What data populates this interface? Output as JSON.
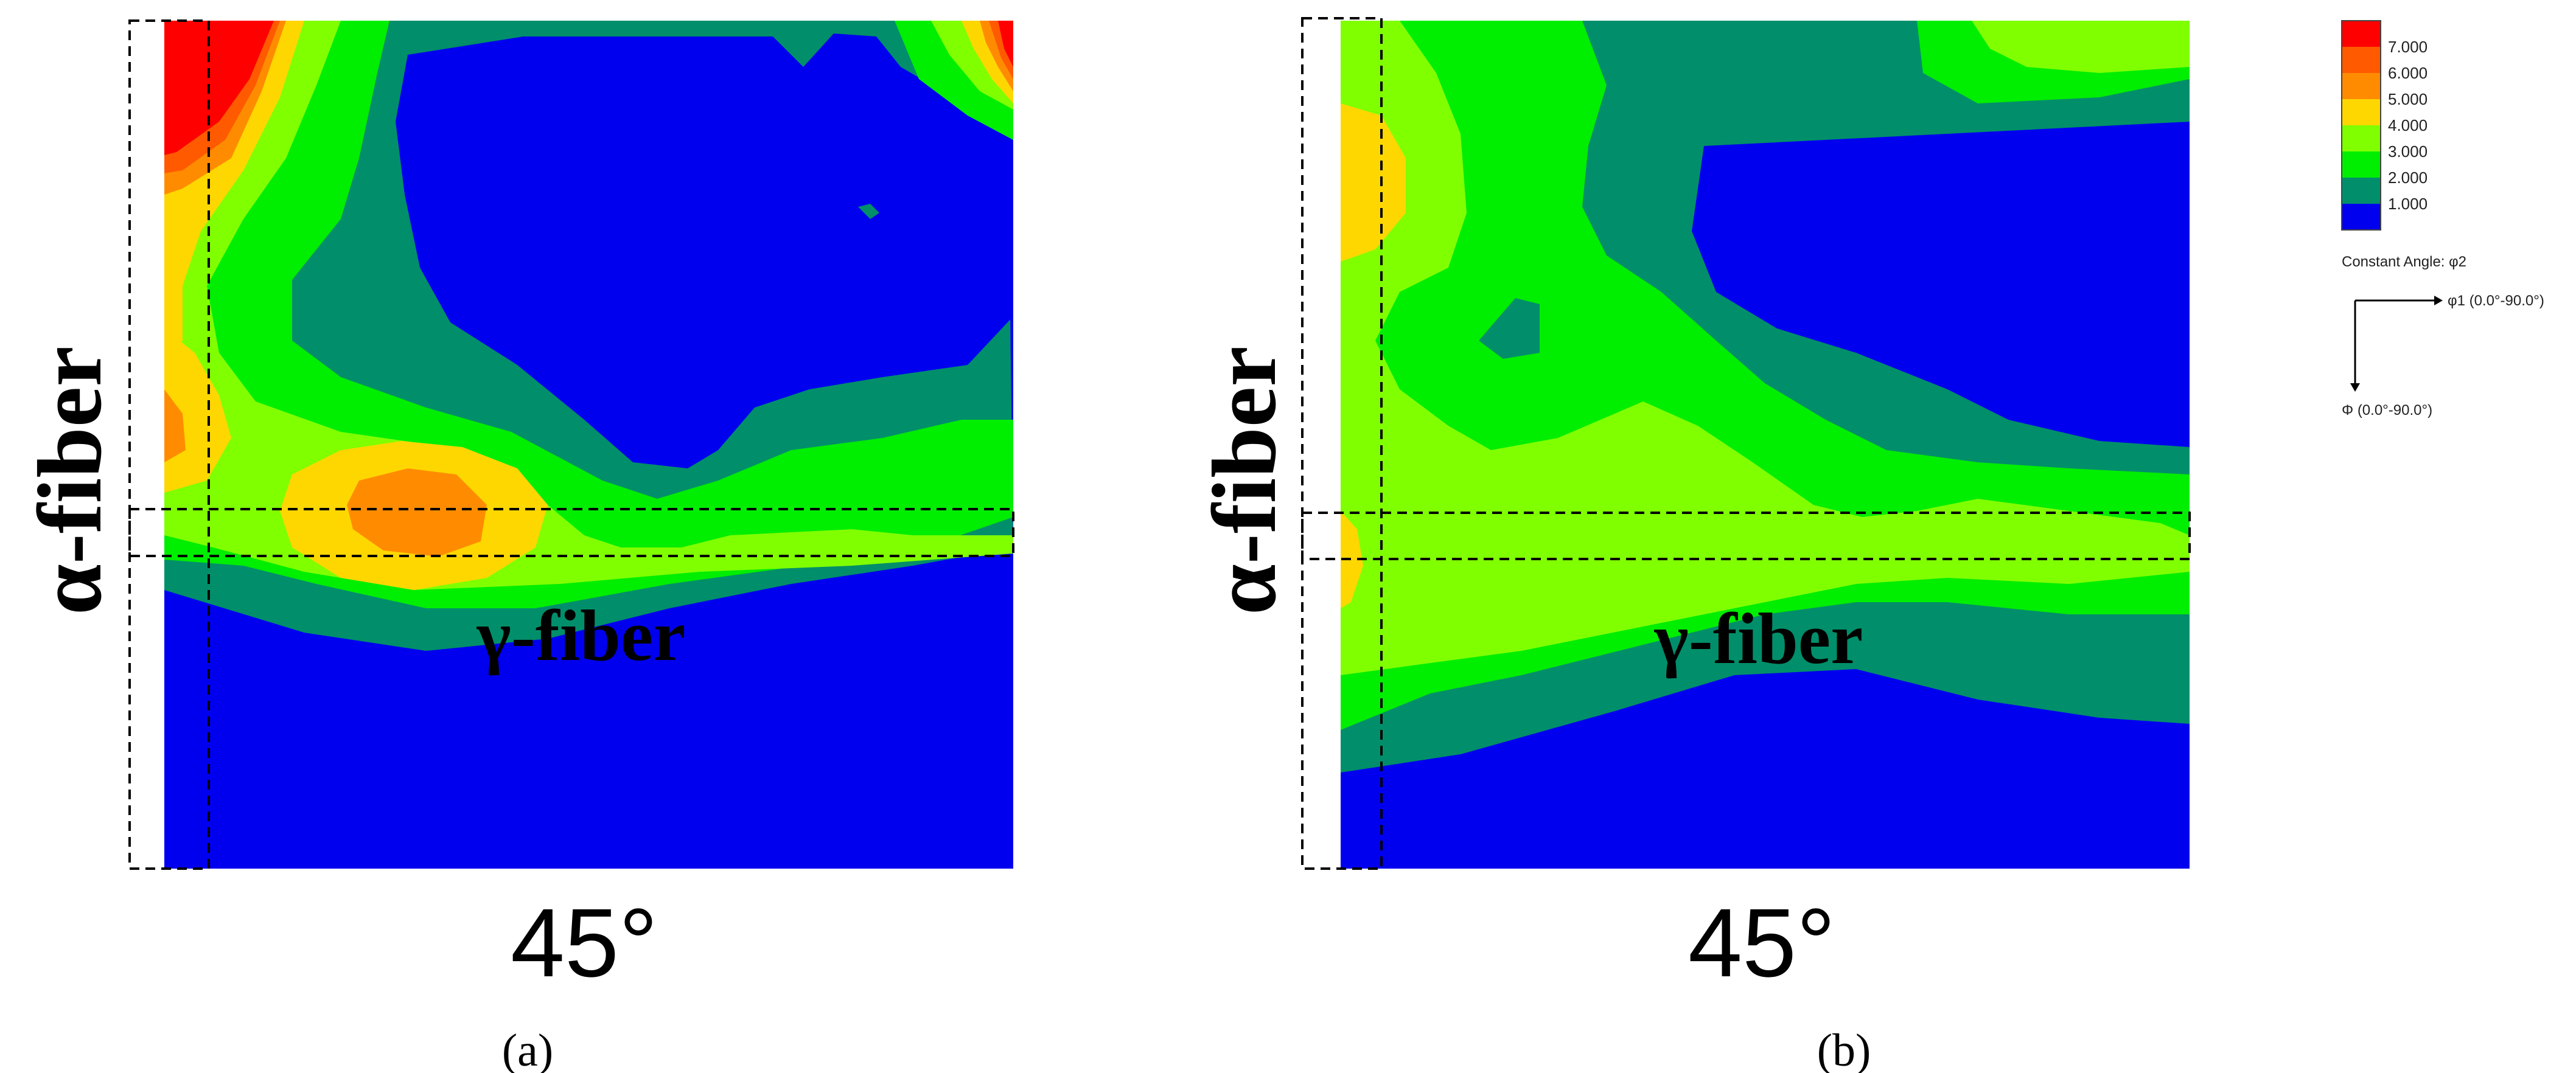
{
  "chart_data": {
    "type": "heatmap",
    "colors": {
      "level7": "#ff0000",
      "level6": "#ff5a00",
      "level5": "#ff8c00",
      "level4": "#ffd700",
      "level3": "#80ff00",
      "level2": "#00ee00",
      "level1": "#008f6a",
      "level0": "#0000ee"
    },
    "legend": {
      "entries": [
        "7.000",
        "6.000",
        "5.000",
        "4.000",
        "3.000",
        "2.000",
        "1.000"
      ],
      "constant_angle": "Constant Angle: φ2",
      "phi1_axis": "φ1 (0.0°-90.0°)",
      "Phi_axis": "Φ (0.0°-90.0°)"
    },
    "panels": [
      {
        "id": "a",
        "caption": "(a)",
        "bottom_label": "45°",
        "alpha_label": "α-fiber",
        "gamma_label": "γ-fiber"
      },
      {
        "id": "b",
        "caption": "(b)",
        "bottom_label": "45°",
        "alpha_label": "α-fiber",
        "gamma_label": "γ-fiber"
      }
    ]
  }
}
